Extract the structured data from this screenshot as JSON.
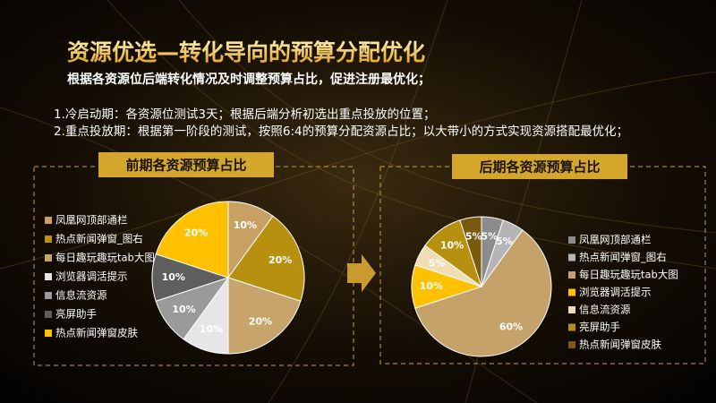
{
  "title": "资源优选—转化导向的预算分配优化",
  "subtitle": "根据各资源位后端转化情况及时调整预算占比，促进注册最优化；",
  "notes": [
    "1.冷启动期：各资源位测试3天；根据后端分析初选出重点投放的位置；",
    "2.重点投放期：根据第一阶段的测试，按照6:4的预算分配资源占比；以大带小的方式实现资源搭配最优化；"
  ],
  "chart_data": [
    {
      "type": "pie",
      "title": "前期各资源预算占比",
      "categories": [
        "凤凰网顶部通栏",
        "热点新闻弹窗_图右",
        "每日趣玩趣玩tab大图",
        "浏览器调活提示",
        "信息流资源",
        "亮屏助手",
        "热点新闻弹窗皮肤"
      ],
      "values": [
        10,
        20,
        20,
        10,
        10,
        10,
        20
      ],
      "value_labels": [
        "10%",
        "20%",
        "20%",
        "10%",
        "10%",
        "10%",
        "20%"
      ],
      "colors": [
        "#c9a063",
        "#b8900f",
        "#c7a46b",
        "#e6e6e6",
        "#9a9a9a",
        "#5e5e5e",
        "#ffc000"
      ]
    },
    {
      "type": "pie",
      "title": "后期各资源预算占比",
      "categories": [
        "凤凰网顶部通栏",
        "热点新闻弹窗_图右",
        "每日趣玩趣玩tab大图",
        "浏览器调活提示",
        "信息流资源",
        "亮屏助手",
        "热点新闻弹窗皮肤"
      ],
      "values": [
        5,
        5,
        60,
        10,
        5,
        10,
        5
      ],
      "value_labels": [
        "5%",
        "5%",
        "60%",
        "10%",
        "5%",
        "10%",
        "5%"
      ],
      "colors": [
        "#8c8c8c",
        "#b5b5b5",
        "#c4a26a",
        "#ffc000",
        "#f0ddb4",
        "#b8900f",
        "#7a5a10"
      ]
    }
  ]
}
